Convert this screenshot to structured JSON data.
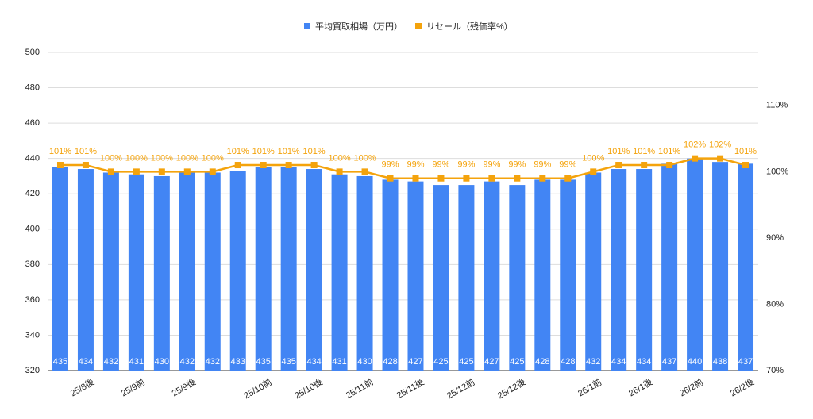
{
  "chart_data": {
    "type": "bar",
    "categories": [
      null,
      "25/8後",
      null,
      "25/9前",
      null,
      "25/9後",
      null,
      null,
      "25/10前",
      null,
      "25/10後",
      null,
      "25/11前",
      null,
      "25/11後",
      null,
      "25/12前",
      null,
      "25/12後",
      null,
      null,
      "26/1前",
      null,
      "26/1後",
      null,
      "26/2前",
      null,
      "26/2後"
    ],
    "series": [
      {
        "name": "平均買取相場（万円）",
        "type": "bar",
        "color": "#4285f4",
        "values": [
          435,
          434,
          432,
          431,
          430,
          432,
          432,
          433,
          435,
          435,
          434,
          431,
          430,
          428,
          427,
          425,
          425,
          427,
          425,
          428,
          428,
          432,
          434,
          434,
          437,
          440,
          438,
          437
        ]
      },
      {
        "name": "リセール（残価率%）",
        "type": "line",
        "axis": "y2",
        "color": "#f4a30c",
        "values": [
          101,
          101,
          100,
          100,
          100,
          100,
          100,
          101,
          101,
          101,
          101,
          100,
          100,
          99,
          99,
          99,
          99,
          99,
          99,
          99,
          99,
          100,
          101,
          101,
          101,
          102,
          102,
          101
        ],
        "value_labels": [
          "101%",
          "101%",
          "100%",
          "100%",
          "100%",
          "100%",
          "100%",
          "101%",
          "101%",
          "101%",
          "101%",
          "100%",
          "100%",
          "99%",
          "99%",
          "99%",
          "99%",
          "99%",
          "99%",
          "99%",
          "99%",
          "100%",
          "101%",
          "101%",
          "101%",
          "102%",
          "102%",
          "101%"
        ]
      }
    ],
    "ylim": [
      320,
      500
    ],
    "yticks": [
      320,
      340,
      360,
      380,
      400,
      420,
      440,
      460,
      480,
      500
    ],
    "y2lim": [
      70,
      118
    ],
    "y2ticks": [
      {
        "value": 70,
        "label": "70%"
      },
      {
        "value": 80,
        "label": "80%"
      },
      {
        "value": 90,
        "label": "90%"
      },
      {
        "value": 100,
        "label": "100%"
      },
      {
        "value": 110,
        "label": "110%"
      }
    ],
    "grid": true
  }
}
